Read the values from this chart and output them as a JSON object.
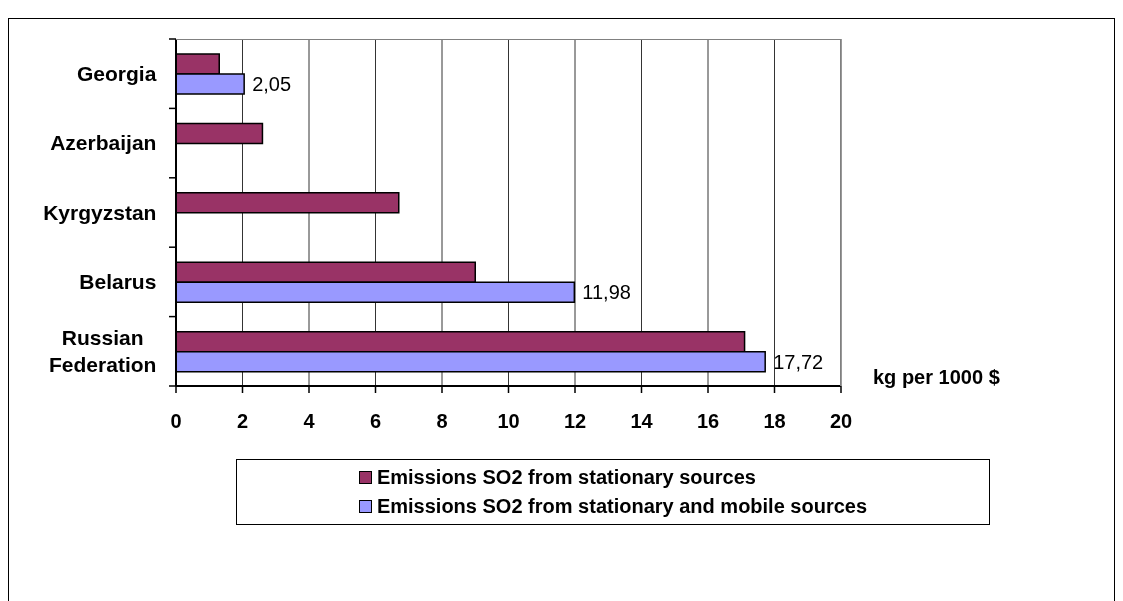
{
  "chart_data": {
    "type": "bar",
    "orientation": "horizontal",
    "categories": [
      "Georgia",
      "Azerbaijan",
      "Kyrgyzstan",
      "Belarus",
      "Russian Federation"
    ],
    "series": [
      {
        "name": "Emissions SO2 from stationary sources",
        "color": "#993366",
        "values": [
          1.3,
          2.6,
          6.7,
          9.0,
          17.1
        ]
      },
      {
        "name": "Emissions SO2 from stationary and mobile sources",
        "color": "#9999ff",
        "values": [
          2.05,
          null,
          null,
          11.98,
          17.72
        ],
        "value_labels": [
          "2,05",
          null,
          null,
          "11,98",
          "17,72"
        ]
      }
    ],
    "xlabel": "kg per 1000 $",
    "xlim": [
      0,
      20
    ],
    "xticks": [
      0,
      2,
      4,
      6,
      8,
      10,
      12,
      14,
      16,
      18,
      20
    ],
    "grid": "x",
    "legend": "bottom"
  }
}
